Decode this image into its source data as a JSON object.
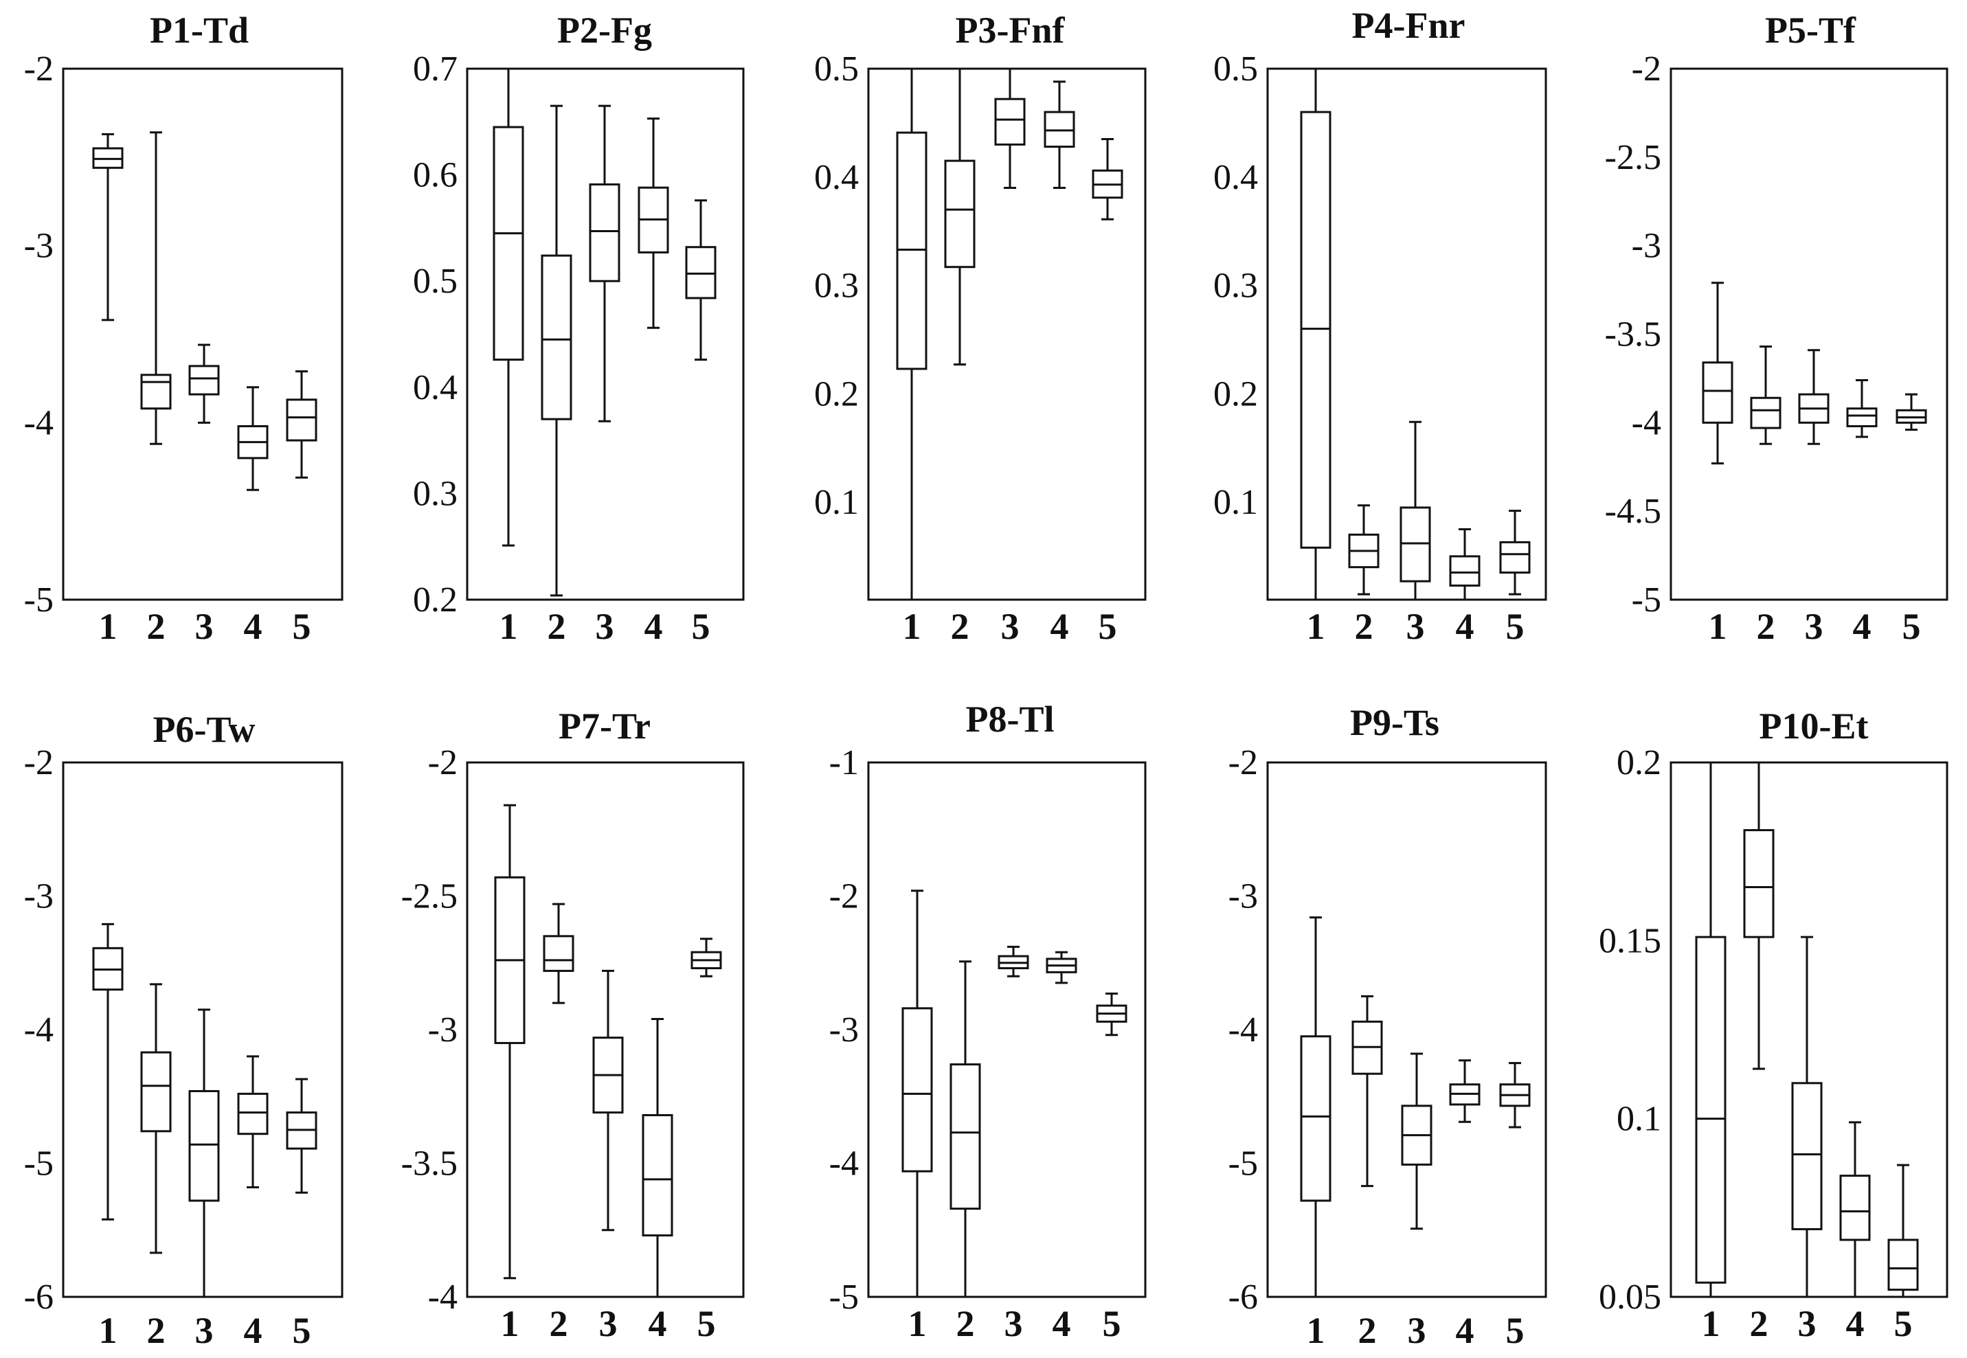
{
  "chart_data": [
    {
      "type": "box",
      "title": "P1-Td",
      "categories": [
        "1",
        "2",
        "3",
        "4",
        "5"
      ],
      "ylim": [
        -5,
        -2
      ],
      "yticks": [
        "-2",
        "-3",
        "-4",
        "-5"
      ],
      "boxes": [
        {
          "min": -3.42,
          "q1": -2.56,
          "median": -2.51,
          "q3": -2.45,
          "max": -2.37
        },
        {
          "min": -4.12,
          "q1": -3.92,
          "median": -3.77,
          "q3": -3.73,
          "max": -2.36
        },
        {
          "min": -4.0,
          "q1": -3.84,
          "median": -3.75,
          "q3": -3.68,
          "max": -3.56
        },
        {
          "min": -4.38,
          "q1": -4.2,
          "median": -4.11,
          "q3": -4.02,
          "max": -3.8
        },
        {
          "min": -4.31,
          "q1": -4.1,
          "median": -3.97,
          "q3": -3.87,
          "max": -3.71
        }
      ]
    },
    {
      "type": "box",
      "title": "P2-Fg",
      "categories": [
        "1",
        "2",
        "3",
        "4",
        "5"
      ],
      "ylim": [
        0.2,
        0.7
      ],
      "yticks": [
        "0.7",
        "0.6",
        "0.5",
        "0.4",
        "0.3",
        "0.2"
      ],
      "boxes": [
        {
          "min": 0.251,
          "q1": 0.426,
          "median": 0.545,
          "q3": 0.645,
          "max": 0.7
        },
        {
          "min": 0.204,
          "q1": 0.37,
          "median": 0.445,
          "q3": 0.524,
          "max": 0.665
        },
        {
          "min": 0.368,
          "q1": 0.5,
          "median": 0.547,
          "q3": 0.591,
          "max": 0.665
        },
        {
          "min": 0.456,
          "q1": 0.527,
          "median": 0.558,
          "q3": 0.588,
          "max": 0.653
        },
        {
          "min": 0.426,
          "q1": 0.484,
          "median": 0.507,
          "q3": 0.532,
          "max": 0.576
        }
      ]
    },
    {
      "type": "box",
      "title": "P3-Fnf",
      "categories": [
        "1",
        "2",
        "3",
        "4",
        "5"
      ],
      "ylim": [
        0.01,
        0.5
      ],
      "yticks": [
        "0.5",
        "0.4",
        "0.3",
        "0.2",
        "0.1"
      ],
      "boxes": [
        {
          "min": 0.01,
          "q1": 0.223,
          "median": 0.333,
          "q3": 0.441,
          "max": 0.5
        },
        {
          "min": 0.227,
          "q1": 0.317,
          "median": 0.37,
          "q3": 0.415,
          "max": 0.5
        },
        {
          "min": 0.39,
          "q1": 0.43,
          "median": 0.453,
          "q3": 0.472,
          "max": 0.5
        },
        {
          "min": 0.39,
          "q1": 0.428,
          "median": 0.443,
          "q3": 0.46,
          "max": 0.488
        },
        {
          "min": 0.361,
          "q1": 0.381,
          "median": 0.393,
          "q3": 0.406,
          "max": 0.435
        }
      ]
    },
    {
      "type": "box",
      "title": "P4-Fnr",
      "categories": [
        "1",
        "2",
        "3",
        "4",
        "5"
      ],
      "ylim": [
        0.01,
        0.5
      ],
      "yticks": [
        "0.5",
        "0.4",
        "0.3",
        "0.2",
        "0.1"
      ],
      "boxes": [
        {
          "min": 0.01,
          "q1": 0.058,
          "median": 0.26,
          "q3": 0.46,
          "max": 0.5
        },
        {
          "min": 0.015,
          "q1": 0.04,
          "median": 0.055,
          "q3": 0.07,
          "max": 0.097
        },
        {
          "min": 0.01,
          "q1": 0.027,
          "median": 0.062,
          "q3": 0.095,
          "max": 0.174
        },
        {
          "min": 0.01,
          "q1": 0.023,
          "median": 0.035,
          "q3": 0.05,
          "max": 0.075
        },
        {
          "min": 0.015,
          "q1": 0.035,
          "median": 0.052,
          "q3": 0.063,
          "max": 0.092
        }
      ]
    },
    {
      "type": "box",
      "title": "P5-Tf",
      "categories": [
        "1",
        "2",
        "3",
        "4",
        "5"
      ],
      "ylim": [
        -5,
        -2
      ],
      "yticks": [
        "-2",
        "-2.5",
        "-3",
        "-3.5",
        "-4",
        "-4.5",
        "-5"
      ],
      "boxes": [
        {
          "min": -4.23,
          "q1": -4.0,
          "median": -3.82,
          "q3": -3.66,
          "max": -3.21
        },
        {
          "min": -4.12,
          "q1": -4.03,
          "median": -3.93,
          "q3": -3.86,
          "max": -3.57
        },
        {
          "min": -4.12,
          "q1": -4.0,
          "median": -3.92,
          "q3": -3.84,
          "max": -3.59
        },
        {
          "min": -4.08,
          "q1": -4.02,
          "median": -3.96,
          "q3": -3.92,
          "max": -3.76
        },
        {
          "min": -4.04,
          "q1": -4.0,
          "median": -3.97,
          "q3": -3.93,
          "max": -3.84
        }
      ]
    },
    {
      "type": "box",
      "title": "P6-Tw",
      "categories": [
        "1",
        "2",
        "3",
        "4",
        "5"
      ],
      "ylim": [
        -6,
        -2
      ],
      "yticks": [
        "-2",
        "-3",
        "-4",
        "-5",
        "-6"
      ],
      "boxes": [
        {
          "min": -5.42,
          "q1": -3.7,
          "median": -3.55,
          "q3": -3.39,
          "max": -3.21
        },
        {
          "min": -5.67,
          "q1": -4.76,
          "median": -4.42,
          "q3": -4.17,
          "max": -3.66
        },
        {
          "min": -6.0,
          "q1": -5.28,
          "median": -4.86,
          "q3": -4.46,
          "max": -3.85
        },
        {
          "min": -5.18,
          "q1": -4.78,
          "median": -4.62,
          "q3": -4.48,
          "max": -4.2
        },
        {
          "min": -5.22,
          "q1": -4.89,
          "median": -4.75,
          "q3": -4.62,
          "max": -4.37
        }
      ]
    },
    {
      "type": "box",
      "title": "P7-Tr",
      "categories": [
        "1",
        "2",
        "3",
        "4",
        "5"
      ],
      "ylim": [
        -4,
        -2
      ],
      "yticks": [
        "-2",
        "-2.5",
        "-3",
        "-3.5",
        "-4"
      ],
      "boxes": [
        {
          "min": -3.93,
          "q1": -3.05,
          "median": -2.74,
          "q3": -2.43,
          "max": -2.16
        },
        {
          "min": -2.9,
          "q1": -2.78,
          "median": -2.74,
          "q3": -2.65,
          "max": -2.53
        },
        {
          "min": -3.75,
          "q1": -3.31,
          "median": -3.17,
          "q3": -3.03,
          "max": -2.78
        },
        {
          "min": -4.0,
          "q1": -3.77,
          "median": -3.56,
          "q3": -3.32,
          "max": -2.96
        },
        {
          "min": -2.8,
          "q1": -2.77,
          "median": -2.74,
          "q3": -2.71,
          "max": -2.66
        }
      ]
    },
    {
      "type": "box",
      "title": "P8-Tl",
      "categories": [
        "1",
        "2",
        "3",
        "4",
        "5"
      ],
      "ylim": [
        -5,
        -1
      ],
      "yticks": [
        "-1",
        "-2",
        "-3",
        "-4",
        "-5"
      ],
      "boxes": [
        {
          "min": -5.0,
          "q1": -4.06,
          "median": -3.48,
          "q3": -2.84,
          "max": -1.96
        },
        {
          "min": -5.0,
          "q1": -4.34,
          "median": -3.77,
          "q3": -3.26,
          "max": -2.49
        },
        {
          "min": -2.6,
          "q1": -2.54,
          "median": -2.5,
          "q3": -2.45,
          "max": -2.38
        },
        {
          "min": -2.65,
          "q1": -2.57,
          "median": -2.52,
          "q3": -2.47,
          "max": -2.42
        },
        {
          "min": -3.04,
          "q1": -2.94,
          "median": -2.88,
          "q3": -2.82,
          "max": -2.73
        }
      ]
    },
    {
      "type": "box",
      "title": "P9-Ts",
      "categories": [
        "1",
        "2",
        "3",
        "4",
        "5"
      ],
      "ylim": [
        -6,
        -2
      ],
      "yticks": [
        "-2",
        "-3",
        "-4",
        "-5",
        "-6"
      ],
      "boxes": [
        {
          "min": -6.0,
          "q1": -5.28,
          "median": -4.65,
          "q3": -4.05,
          "max": -3.16
        },
        {
          "min": -5.17,
          "q1": -4.33,
          "median": -4.13,
          "q3": -3.94,
          "max": -3.75
        },
        {
          "min": -5.49,
          "q1": -5.01,
          "median": -4.79,
          "q3": -4.57,
          "max": -4.18
        },
        {
          "min": -4.69,
          "q1": -4.56,
          "median": -4.48,
          "q3": -4.41,
          "max": -4.23
        },
        {
          "min": -4.73,
          "q1": -4.57,
          "median": -4.49,
          "q3": -4.41,
          "max": -4.25
        }
      ]
    },
    {
      "type": "box",
      "title": "P10-Et",
      "categories": [
        "1",
        "2",
        "3",
        "4",
        "5"
      ],
      "ylim": [
        0.05,
        0.2
      ],
      "yticks": [
        "0.2",
        "0.15",
        "0.1",
        "0.05"
      ],
      "boxes": [
        {
          "min": 0.05,
          "q1": 0.054,
          "median": 0.1,
          "q3": 0.151,
          "max": 0.2
        },
        {
          "min": 0.114,
          "q1": 0.151,
          "median": 0.165,
          "q3": 0.181,
          "max": 0.2
        },
        {
          "min": 0.05,
          "q1": 0.069,
          "median": 0.09,
          "q3": 0.11,
          "max": 0.151
        },
        {
          "min": 0.05,
          "q1": 0.066,
          "median": 0.074,
          "q3": 0.084,
          "max": 0.099
        },
        {
          "min": 0.05,
          "q1": 0.052,
          "median": 0.058,
          "q3": 0.066,
          "max": 0.087
        }
      ]
    }
  ]
}
